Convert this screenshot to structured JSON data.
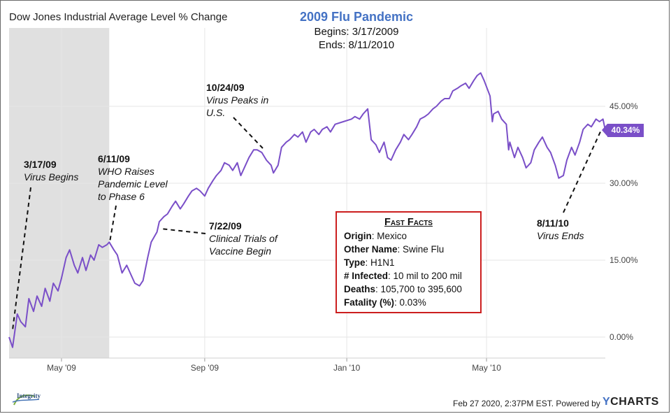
{
  "header": {
    "chart_title": "Dow Jones Industrial Average Level % Change",
    "event_title": "2009 Flu Pandemic",
    "begins": "Begins: 3/17/2009",
    "ends": "Ends: 8/11/2010"
  },
  "annotations": [
    {
      "id": "virus-begins",
      "date": "3/17/09",
      "lines": [
        "Virus Begins"
      ]
    },
    {
      "id": "who-raises",
      "date": "6/11/09",
      "lines": [
        "WHO Raises",
        "Pandemic Level",
        "to Phase 6"
      ]
    },
    {
      "id": "clinical-trials",
      "date": "7/22/09",
      "lines": [
        "Clinical Trials of",
        "Vaccine Begin"
      ]
    },
    {
      "id": "virus-peaks",
      "date": "10/24/09",
      "lines": [
        "Virus Peaks in",
        "U.S."
      ]
    },
    {
      "id": "virus-ends",
      "date": "8/11/10",
      "lines": [
        "Virus Ends"
      ]
    }
  ],
  "fast_facts": {
    "title": "Fast Facts",
    "rows": [
      {
        "label": "Origin",
        "value": ": Mexico"
      },
      {
        "label": "Other Name",
        "value": ": Swine Flu"
      },
      {
        "label": "Type",
        "value": ": H1N1"
      },
      {
        "label": "# Infected",
        "value": ": 10 mil to 200 mil"
      },
      {
        "label": "Deaths",
        "value": ": 105,700 to 395,600"
      },
      {
        "label": "Fatality (%)",
        "value": ": 0.03%"
      }
    ]
  },
  "footer": {
    "timestamp": "Feb 27 2020, 2:37PM EST. Powered by",
    "brand_y": "Y",
    "brand_rest": "CHARTS",
    "logo_text": "Integrity"
  },
  "colors": {
    "series": "#7a4fc8",
    "shade": "#e0e0e0",
    "facts_border": "#cc1f1f",
    "event_title": "#4472c4"
  },
  "chart_data": {
    "type": "line",
    "title": "Dow Jones Industrial Average Level % Change",
    "x_ticks": [
      "May '09",
      "Sep '09",
      "Jan '10",
      "May '10"
    ],
    "y_ticks": [
      "0.00%",
      "15.00%",
      "30.00%",
      "45.00%"
    ],
    "ylim": [
      -5,
      60
    ],
    "xlim": [
      "2009-03-17",
      "2010-08-11"
    ],
    "grid": true,
    "shaded_region": {
      "start": "2009-03-17",
      "end": "2009-06-11"
    },
    "last_value_label": "40.34%",
    "series": [
      {
        "values": [
          [
            "2009-03-17",
            0.0
          ],
          [
            "2009-03-20",
            -2.0
          ],
          [
            "2009-03-24",
            4.5
          ],
          [
            "2009-03-27",
            3.0
          ],
          [
            "2009-03-31",
            2.0
          ],
          [
            "2009-04-03",
            7.5
          ],
          [
            "2009-04-07",
            5.0
          ],
          [
            "2009-04-10",
            8.0
          ],
          [
            "2009-04-14",
            6.0
          ],
          [
            "2009-04-17",
            9.5
          ],
          [
            "2009-04-21",
            7.0
          ],
          [
            "2009-04-24",
            10.5
          ],
          [
            "2009-04-28",
            9.0
          ],
          [
            "2009-05-01",
            11.5
          ],
          [
            "2009-05-05",
            15.5
          ],
          [
            "2009-05-08",
            17.0
          ],
          [
            "2009-05-12",
            14.0
          ],
          [
            "2009-05-15",
            12.5
          ],
          [
            "2009-05-19",
            15.5
          ],
          [
            "2009-05-22",
            13.0
          ],
          [
            "2009-05-26",
            16.0
          ],
          [
            "2009-05-29",
            15.0
          ],
          [
            "2009-06-02",
            18.0
          ],
          [
            "2009-06-05",
            17.5
          ],
          [
            "2009-06-09",
            18.0
          ],
          [
            "2009-06-11",
            18.5
          ],
          [
            "2009-06-15",
            17.0
          ],
          [
            "2009-06-18",
            16.0
          ],
          [
            "2009-06-22",
            12.5
          ],
          [
            "2009-06-26",
            14.0
          ],
          [
            "2009-06-30",
            12.0
          ],
          [
            "2009-07-03",
            10.5
          ],
          [
            "2009-07-07",
            10.0
          ],
          [
            "2009-07-10",
            11.0
          ],
          [
            "2009-07-14",
            15.5
          ],
          [
            "2009-07-17",
            18.5
          ],
          [
            "2009-07-22",
            20.5
          ],
          [
            "2009-07-24",
            22.5
          ],
          [
            "2009-07-28",
            23.5
          ],
          [
            "2009-07-31",
            24.0
          ],
          [
            "2009-08-04",
            25.5
          ],
          [
            "2009-08-07",
            26.5
          ],
          [
            "2009-08-11",
            25.0
          ],
          [
            "2009-08-14",
            26.0
          ],
          [
            "2009-08-18",
            27.5
          ],
          [
            "2009-08-21",
            28.5
          ],
          [
            "2009-08-25",
            29.0
          ],
          [
            "2009-08-28",
            28.5
          ],
          [
            "2009-09-01",
            27.5
          ],
          [
            "2009-09-04",
            29.0
          ],
          [
            "2009-09-08",
            30.5
          ],
          [
            "2009-09-11",
            31.5
          ],
          [
            "2009-09-15",
            32.5
          ],
          [
            "2009-09-18",
            34.0
          ],
          [
            "2009-09-22",
            33.5
          ],
          [
            "2009-09-25",
            32.5
          ],
          [
            "2009-09-29",
            34.0
          ],
          [
            "2009-10-02",
            31.5
          ],
          [
            "2009-10-06",
            33.5
          ],
          [
            "2009-10-09",
            35.0
          ],
          [
            "2009-10-13",
            36.5
          ],
          [
            "2009-10-16",
            36.5
          ],
          [
            "2009-10-20",
            36.0
          ],
          [
            "2009-10-24",
            34.5
          ],
          [
            "2009-10-28",
            33.5
          ],
          [
            "2009-10-30",
            32.0
          ],
          [
            "2009-11-03",
            33.5
          ],
          [
            "2009-11-06",
            37.0
          ],
          [
            "2009-11-10",
            38.0
          ],
          [
            "2009-11-13",
            38.5
          ],
          [
            "2009-11-17",
            39.5
          ],
          [
            "2009-11-20",
            39.0
          ],
          [
            "2009-11-24",
            40.0
          ],
          [
            "2009-11-27",
            38.0
          ],
          [
            "2009-12-01",
            40.0
          ],
          [
            "2009-12-04",
            40.5
          ],
          [
            "2009-12-08",
            39.5
          ],
          [
            "2009-12-11",
            40.5
          ],
          [
            "2009-12-15",
            41.0
          ],
          [
            "2009-12-18",
            40.0
          ],
          [
            "2009-12-22",
            41.5
          ],
          [
            "2009-12-29",
            42.0
          ],
          [
            "2010-01-05",
            42.5
          ],
          [
            "2010-01-08",
            43.0
          ],
          [
            "2010-01-12",
            42.5
          ],
          [
            "2010-01-15",
            43.5
          ],
          [
            "2010-01-19",
            44.5
          ],
          [
            "2010-01-22",
            38.5
          ],
          [
            "2010-01-26",
            37.5
          ],
          [
            "2010-01-29",
            36.0
          ],
          [
            "2010-02-02",
            38.0
          ],
          [
            "2010-02-05",
            35.0
          ],
          [
            "2010-02-08",
            34.5
          ],
          [
            "2010-02-12",
            36.5
          ],
          [
            "2010-02-16",
            38.0
          ],
          [
            "2010-02-19",
            39.5
          ],
          [
            "2010-02-23",
            38.5
          ],
          [
            "2010-02-26",
            39.5
          ],
          [
            "2010-03-02",
            41.0
          ],
          [
            "2010-03-05",
            42.5
          ],
          [
            "2010-03-09",
            43.0
          ],
          [
            "2010-03-12",
            43.5
          ],
          [
            "2010-03-16",
            44.5
          ],
          [
            "2010-03-19",
            45.0
          ],
          [
            "2010-03-23",
            46.0
          ],
          [
            "2010-03-26",
            46.5
          ],
          [
            "2010-03-30",
            46.5
          ],
          [
            "2010-04-02",
            48.0
          ],
          [
            "2010-04-06",
            48.5
          ],
          [
            "2010-04-09",
            49.0
          ],
          [
            "2010-04-13",
            49.5
          ],
          [
            "2010-04-16",
            48.5
          ],
          [
            "2010-04-20",
            50.0
          ],
          [
            "2010-04-23",
            51.0
          ],
          [
            "2010-04-26",
            51.5
          ],
          [
            "2010-04-29",
            50.0
          ],
          [
            "2010-05-04",
            47.0
          ],
          [
            "2010-05-06",
            42.0
          ],
          [
            "2010-05-07",
            43.5
          ],
          [
            "2010-05-11",
            44.0
          ],
          [
            "2010-05-14",
            42.5
          ],
          [
            "2010-05-18",
            41.5
          ],
          [
            "2010-05-20",
            36.5
          ],
          [
            "2010-05-21",
            38.0
          ],
          [
            "2010-05-25",
            35.0
          ],
          [
            "2010-05-28",
            37.0
          ],
          [
            "2010-06-01",
            35.0
          ],
          [
            "2010-06-04",
            33.0
          ],
          [
            "2010-06-08",
            34.0
          ],
          [
            "2010-06-11",
            36.5
          ],
          [
            "2010-06-15",
            38.0
          ],
          [
            "2010-06-18",
            39.0
          ],
          [
            "2010-06-22",
            37.0
          ],
          [
            "2010-06-25",
            36.0
          ],
          [
            "2010-06-29",
            33.5
          ],
          [
            "2010-07-02",
            31.0
          ],
          [
            "2010-07-06",
            31.5
          ],
          [
            "2010-07-09",
            34.5
          ],
          [
            "2010-07-13",
            37.0
          ],
          [
            "2010-07-16",
            35.5
          ],
          [
            "2010-07-20",
            38.0
          ],
          [
            "2010-07-23",
            40.5
          ],
          [
            "2010-07-27",
            41.5
          ],
          [
            "2010-07-30",
            41.0
          ],
          [
            "2010-08-03",
            42.5
          ],
          [
            "2010-08-06",
            42.0
          ],
          [
            "2010-08-09",
            42.5
          ],
          [
            "2010-08-11",
            40.34
          ]
        ]
      }
    ]
  }
}
